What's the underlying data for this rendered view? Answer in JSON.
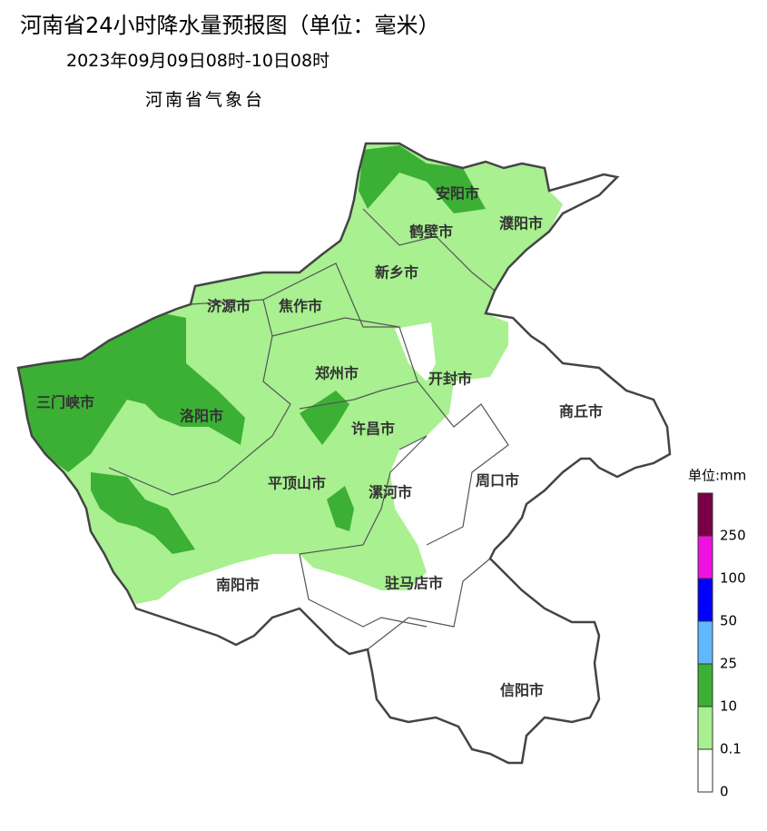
{
  "header": {
    "title": "河南省24小时降水量预报图（单位：毫米）",
    "period": "2023年09月09日08时-10日08时",
    "issuer": "河南省气象台"
  },
  "cities": [
    "安阳市",
    "鹤壁市",
    "濮阳市",
    "新乡市",
    "济源市",
    "焦作市",
    "郑州市",
    "开封市",
    "三门峡市",
    "洛阳市",
    "许昌市",
    "商丘市",
    "平顶山市",
    "漯河市",
    "周口市",
    "南阳市",
    "驻马店市",
    "信阳市"
  ],
  "legend": {
    "title": "单位:mm",
    "items": [
      {
        "color": "#7a0046",
        "label": "250"
      },
      {
        "color": "#f010e0",
        "label": "100"
      },
      {
        "color": "#0000ff",
        "label": "50"
      },
      {
        "color": "#60b8ff",
        "label": "25"
      },
      {
        "color": "#3cb034",
        "label": "10"
      },
      {
        "color": "#a8f090",
        "label": "0.1"
      },
      {
        "color": "#ffffff",
        "label": "0"
      }
    ]
  }
}
